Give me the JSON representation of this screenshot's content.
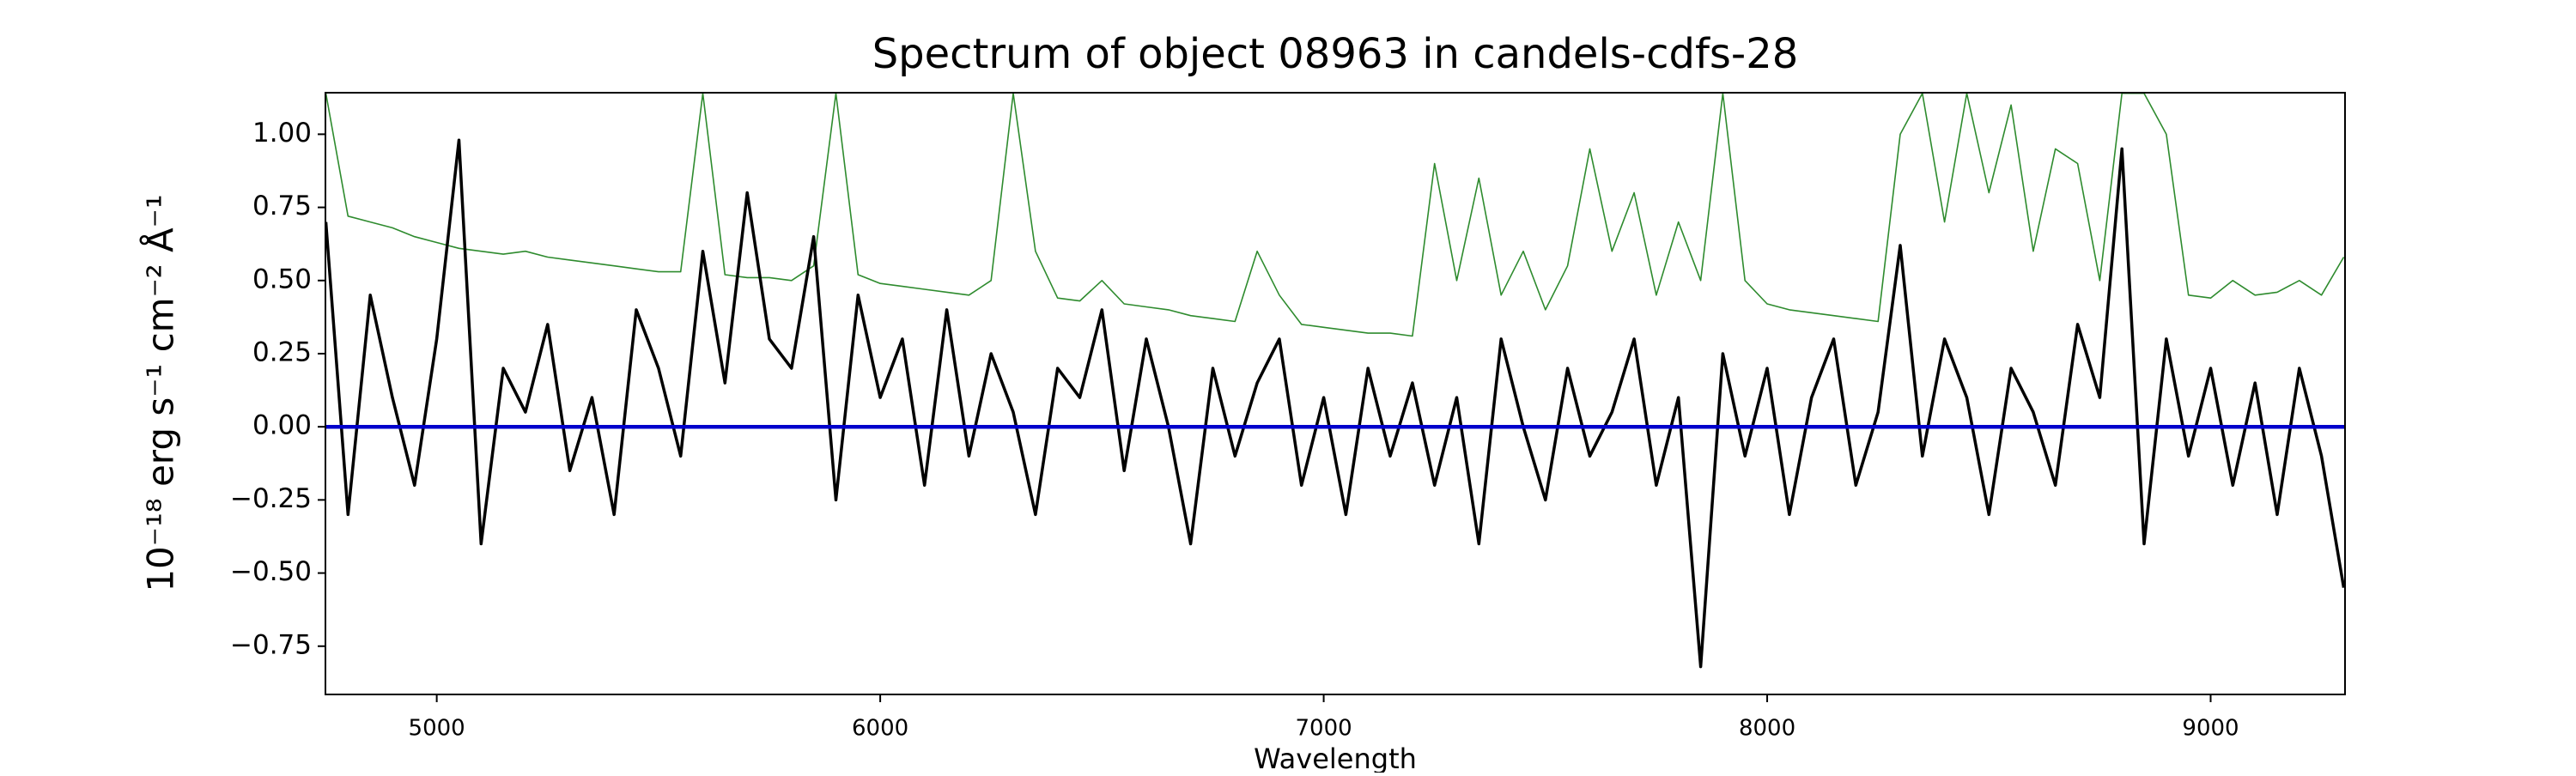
{
  "chart_data": {
    "type": "line",
    "title": "Spectrum of object 08963 in candels-cdfs-28",
    "xlabel": "Wavelength",
    "ylabel": "10⁻¹⁸ erg s⁻¹ cm⁻² Å⁻¹",
    "xlim": [
      4749,
      9303
    ],
    "ylim": [
      -0.915,
      1.142
    ],
    "xticks": [
      5000,
      6000,
      7000,
      8000,
      9000
    ],
    "yticks": [
      {
        "value": -0.75,
        "label": "−0.75"
      },
      {
        "value": -0.5,
        "label": "−0.50"
      },
      {
        "value": -0.25,
        "label": "−0.25"
      },
      {
        "value": 0,
        "label": "0.00"
      },
      {
        "value": 0.25,
        "label": "0.25"
      },
      {
        "value": 0.5,
        "label": "0.50"
      },
      {
        "value": 0.75,
        "label": "0.75"
      },
      {
        "value": 1.0,
        "label": "1.00"
      }
    ],
    "grid": false,
    "series": [
      {
        "color": "#2e8b2e",
        "width": 1.6,
        "x": [
          4750,
          4800,
          4850,
          4900,
          4950,
          5000,
          5050,
          5100,
          5150,
          5200,
          5250,
          5300,
          5350,
          5400,
          5450,
          5500,
          5550,
          5600,
          5650,
          5700,
          5750,
          5800,
          5850,
          5900,
          5950,
          6000,
          6050,
          6100,
          6150,
          6200,
          6250,
          6300,
          6350,
          6400,
          6450,
          6500,
          6550,
          6600,
          6650,
          6700,
          6750,
          6800,
          6850,
          6900,
          6950,
          7000,
          7050,
          7100,
          7150,
          7200,
          7250,
          7300,
          7350,
          7400,
          7450,
          7500,
          7550,
          7600,
          7650,
          7700,
          7750,
          7800,
          7850,
          7900,
          7950,
          8000,
          8050,
          8100,
          8150,
          8200,
          8250,
          8300,
          8350,
          8400,
          8450,
          8500,
          8550,
          8600,
          8650,
          8700,
          8750,
          8800,
          8850,
          8900,
          8950,
          9000,
          9050,
          9100,
          9150,
          9200,
          9250,
          9300
        ],
        "values": [
          1.14,
          0.72,
          0.7,
          0.68,
          0.65,
          0.63,
          0.61,
          0.6,
          0.59,
          0.6,
          0.58,
          0.57,
          0.56,
          0.55,
          0.54,
          0.53,
          0.53,
          1.14,
          0.52,
          0.51,
          0.51,
          0.5,
          0.55,
          1.14,
          0.52,
          0.49,
          0.48,
          0.47,
          0.46,
          0.45,
          0.5,
          1.14,
          0.6,
          0.44,
          0.43,
          0.5,
          0.42,
          0.41,
          0.4,
          0.38,
          0.37,
          0.36,
          0.6,
          0.45,
          0.35,
          0.34,
          0.33,
          0.32,
          0.32,
          0.31,
          0.9,
          0.5,
          0.85,
          0.45,
          0.6,
          0.4,
          0.55,
          0.95,
          0.6,
          0.8,
          0.45,
          0.7,
          0.5,
          1.14,
          0.5,
          0.42,
          0.4,
          0.39,
          0.38,
          0.37,
          0.36,
          1.0,
          1.14,
          0.7,
          1.14,
          0.8,
          1.1,
          0.6,
          0.95,
          0.9,
          0.5,
          1.14,
          1.14,
          1.0,
          0.45,
          0.44,
          0.5,
          0.45,
          0.46,
          0.5,
          0.45,
          0.58
        ]
      },
      {
        "color": "#000000",
        "width": 3.5,
        "x": [
          4750,
          4800,
          4850,
          4900,
          4950,
          5000,
          5050,
          5100,
          5150,
          5200,
          5250,
          5300,
          5350,
          5400,
          5450,
          5500,
          5550,
          5600,
          5650,
          5700,
          5750,
          5800,
          5850,
          5900,
          5950,
          6000,
          6050,
          6100,
          6150,
          6200,
          6250,
          6300,
          6350,
          6400,
          6450,
          6500,
          6550,
          6600,
          6650,
          6700,
          6750,
          6800,
          6850,
          6900,
          6950,
          7000,
          7050,
          7100,
          7150,
          7200,
          7250,
          7300,
          7350,
          7400,
          7450,
          7500,
          7550,
          7600,
          7650,
          7700,
          7750,
          7800,
          7850,
          7900,
          7950,
          8000,
          8050,
          8100,
          8150,
          8200,
          8250,
          8300,
          8350,
          8400,
          8450,
          8500,
          8550,
          8600,
          8650,
          8700,
          8750,
          8800,
          8850,
          8900,
          8950,
          9000,
          9050,
          9100,
          9150,
          9200,
          9250,
          9300
        ],
        "values": [
          0.7,
          -0.3,
          0.45,
          0.1,
          -0.2,
          0.3,
          0.98,
          -0.4,
          0.2,
          0.05,
          0.35,
          -0.15,
          0.1,
          -0.3,
          0.4,
          0.2,
          -0.1,
          0.6,
          0.15,
          0.8,
          0.3,
          0.2,
          0.65,
          -0.25,
          0.45,
          0.1,
          0.3,
          -0.2,
          0.4,
          -0.1,
          0.25,
          0.05,
          -0.3,
          0.2,
          0.1,
          0.4,
          -0.15,
          0.3,
          0.0,
          -0.4,
          0.2,
          -0.1,
          0.15,
          0.3,
          -0.2,
          0.1,
          -0.3,
          0.2,
          -0.1,
          0.15,
          -0.2,
          0.1,
          -0.4,
          0.3,
          0.0,
          -0.25,
          0.2,
          -0.1,
          0.05,
          0.3,
          -0.2,
          0.1,
          -0.82,
          0.25,
          -0.1,
          0.2,
          -0.3,
          0.1,
          0.3,
          -0.2,
          0.05,
          0.62,
          -0.1,
          0.3,
          0.1,
          -0.3,
          0.2,
          0.05,
          -0.2,
          0.35,
          0.1,
          0.95,
          -0.4,
          0.3,
          -0.1,
          0.2,
          -0.2,
          0.15,
          -0.3,
          0.2,
          -0.1,
          -0.55
        ]
      },
      {
        "color": "#0000cc",
        "width": 4.5,
        "x": [
          4749,
          9303
        ],
        "values": [
          0,
          0
        ]
      }
    ]
  }
}
